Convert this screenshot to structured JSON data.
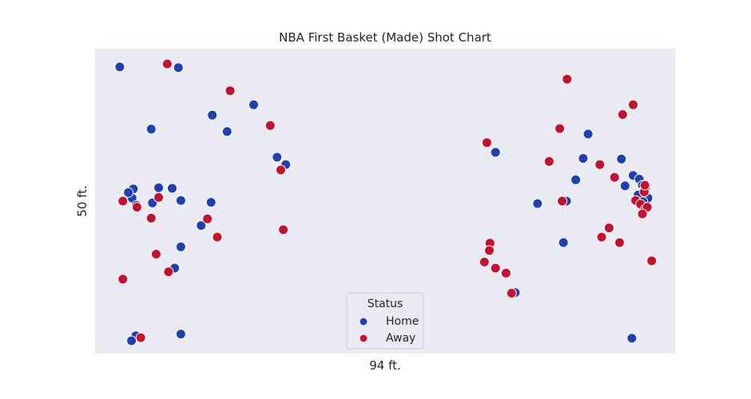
{
  "chart_data": {
    "type": "scatter",
    "title": "NBA First Basket (Made) Shot Chart",
    "xlabel": "94 ft.",
    "ylabel": "50 ft.",
    "xlim": [
      0,
      94
    ],
    "ylim": [
      0,
      50
    ],
    "grid": false,
    "background_color": "#eaeaf2",
    "legend": {
      "title": "Status",
      "placement": "bottom-center"
    },
    "series": [
      {
        "name": "Home",
        "color": "#1f3fb5",
        "points": [
          [
            4.0,
            47.0
          ],
          [
            13.5,
            46.9
          ],
          [
            9.1,
            36.8
          ],
          [
            19.0,
            39.1
          ],
          [
            21.4,
            36.4
          ],
          [
            25.7,
            40.8
          ],
          [
            29.5,
            32.2
          ],
          [
            30.9,
            31.0
          ],
          [
            6.2,
            27.0
          ],
          [
            6.0,
            25.5
          ],
          [
            5.4,
            26.4
          ],
          [
            6.7,
            24.3
          ],
          [
            9.3,
            24.7
          ],
          [
            10.3,
            27.2
          ],
          [
            12.5,
            27.1
          ],
          [
            13.9,
            25.1
          ],
          [
            18.8,
            24.8
          ],
          [
            17.2,
            21.0
          ],
          [
            13.9,
            17.5
          ],
          [
            12.9,
            14.0
          ],
          [
            6.6,
            2.9
          ],
          [
            5.9,
            2.1
          ],
          [
            13.9,
            3.2
          ],
          [
            64.9,
            33.0
          ],
          [
            79.9,
            36.0
          ],
          [
            79.1,
            32.0
          ],
          [
            77.9,
            28.5
          ],
          [
            76.4,
            25.0
          ],
          [
            71.7,
            24.6
          ],
          [
            75.9,
            18.2
          ],
          [
            68.1,
            10.0
          ],
          [
            85.3,
            31.9
          ],
          [
            85.9,
            27.5
          ],
          [
            87.2,
            29.2
          ],
          [
            88.2,
            28.6
          ],
          [
            88.7,
            27.6
          ],
          [
            88.9,
            26.7
          ],
          [
            89.1,
            26.2
          ],
          [
            89.2,
            27.2
          ],
          [
            89.6,
            25.5
          ],
          [
            89.3,
            23.9
          ],
          [
            88.0,
            26.0
          ],
          [
            88.8,
            24.9
          ],
          [
            87.0,
            2.5
          ]
        ]
      },
      {
        "name": "Away",
        "color": "#c8102e",
        "points": [
          [
            11.7,
            47.5
          ],
          [
            21.9,
            43.1
          ],
          [
            28.4,
            37.4
          ],
          [
            30.1,
            30.1
          ],
          [
            4.5,
            25.0
          ],
          [
            6.8,
            24.0
          ],
          [
            10.3,
            25.6
          ],
          [
            9.1,
            22.2
          ],
          [
            18.2,
            22.1
          ],
          [
            9.9,
            16.3
          ],
          [
            11.9,
            13.4
          ],
          [
            4.5,
            12.2
          ],
          [
            19.8,
            19.1
          ],
          [
            7.4,
            2.6
          ],
          [
            30.5,
            20.3
          ],
          [
            76.5,
            45.0
          ],
          [
            75.3,
            36.9
          ],
          [
            63.5,
            34.6
          ],
          [
            73.6,
            31.5
          ],
          [
            81.8,
            31.0
          ],
          [
            87.2,
            40.8
          ],
          [
            85.5,
            39.2
          ],
          [
            84.2,
            28.9
          ],
          [
            75.7,
            25.0
          ],
          [
            64.0,
            18.1
          ],
          [
            63.9,
            16.9
          ],
          [
            63.1,
            15.0
          ],
          [
            64.9,
            14.0
          ],
          [
            66.6,
            13.2
          ],
          [
            67.5,
            9.9
          ],
          [
            83.3,
            20.6
          ],
          [
            82.1,
            19.1
          ],
          [
            85.0,
            18.2
          ],
          [
            87.6,
            25.1
          ],
          [
            88.4,
            24.5
          ],
          [
            89.1,
            23.6
          ],
          [
            89.5,
            24.0
          ],
          [
            89.0,
            26.5
          ],
          [
            89.1,
            27.6
          ],
          [
            88.7,
            22.9
          ],
          [
            90.2,
            15.2
          ]
        ]
      }
    ]
  }
}
